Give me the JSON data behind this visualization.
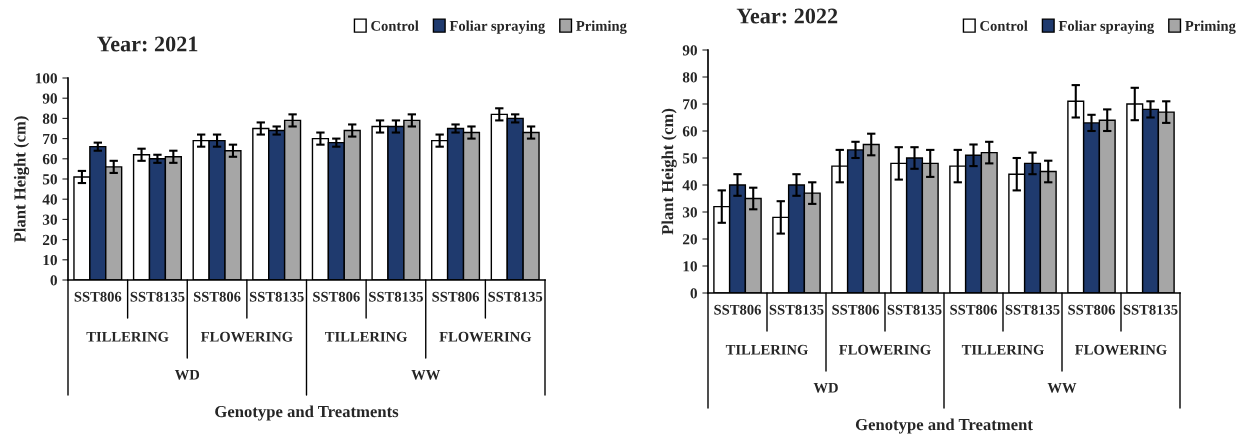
{
  "chart_data": [
    {
      "type": "bar",
      "title": "Year: 2021",
      "xlabel": "Genotype and Treatments",
      "ylabel": "Plant Height (cm)",
      "categories": [
        "SST806",
        "SST8135",
        "SST806",
        "SST8135",
        "SST806",
        "SST8135",
        "SST806",
        "SST8135"
      ],
      "annotations": [
        "TILLERING",
        "FLOWERING",
        "TILLERING",
        "FLOWERING",
        "WD",
        "WW"
      ],
      "series": [
        {
          "name": "Control",
          "color": "#ffffff",
          "values": [
            51,
            62,
            69,
            75,
            70,
            76,
            69,
            82
          ],
          "errors": [
            3,
            3,
            3,
            3,
            3,
            3,
            3,
            3
          ]
        },
        {
          "name": "Foliar spraying",
          "color": "#1f3a6e",
          "values": [
            66,
            60,
            69,
            74,
            68,
            76,
            75,
            80
          ],
          "errors": [
            2,
            2,
            3,
            2,
            2,
            3,
            2,
            2
          ]
        },
        {
          "name": "Priming",
          "color": "#a6a6a6",
          "values": [
            56,
            61,
            64,
            79,
            74,
            79,
            73,
            73
          ],
          "errors": [
            3,
            3,
            3,
            3,
            3,
            3,
            3,
            3
          ]
        }
      ],
      "ylim": [
        0,
        100
      ],
      "yticks": [
        0,
        10,
        20,
        30,
        40,
        50,
        60,
        70,
        80,
        90,
        100
      ],
      "grid": false,
      "legend": "top right"
    },
    {
      "type": "bar",
      "title": "Year: 2022",
      "xlabel": "Genotype and Treatment",
      "ylabel": "Plant Height (cm)",
      "categories": [
        "SST806",
        "SST8135",
        "SST806",
        "SST8135",
        "SST806",
        "SST8135",
        "SST806",
        "SST8135"
      ],
      "annotations": [
        "TILLERING",
        "FLOWERING",
        "TILLERING",
        "FLOWERING",
        "WD",
        "WW"
      ],
      "series": [
        {
          "name": "Control",
          "color": "#ffffff",
          "values": [
            32,
            28,
            47,
            48,
            47,
            44,
            71,
            70
          ],
          "errors": [
            6,
            6,
            6,
            6,
            6,
            6,
            6,
            6
          ]
        },
        {
          "name": "Foliar spraying",
          "color": "#1f3a6e",
          "values": [
            40,
            40,
            53,
            50,
            51,
            48,
            63,
            68
          ],
          "errors": [
            4,
            4,
            3,
            4,
            4,
            4,
            3,
            3
          ]
        },
        {
          "name": "Priming",
          "color": "#a6a6a6",
          "values": [
            35,
            37,
            55,
            48,
            52,
            45,
            64,
            67
          ],
          "errors": [
            4,
            4,
            4,
            5,
            4,
            4,
            4,
            4
          ]
        }
      ],
      "ylim": [
        0,
        90
      ],
      "yticks": [
        0,
        10,
        20,
        30,
        40,
        50,
        60,
        70,
        80,
        90
      ],
      "grid": false,
      "legend": "top right"
    }
  ]
}
